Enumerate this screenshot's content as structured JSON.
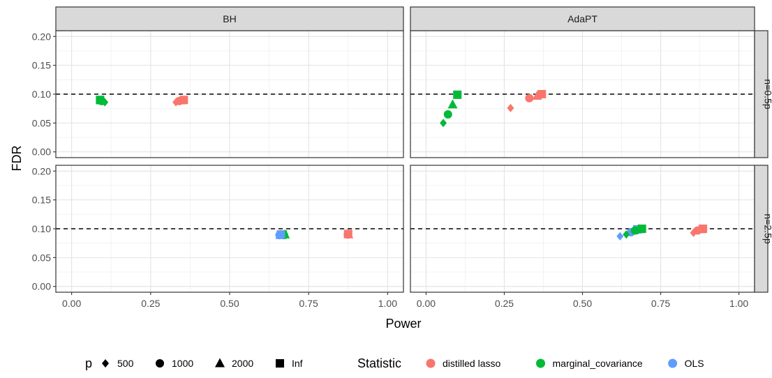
{
  "chart_data": {
    "type": "scatter",
    "xlabel": "Power",
    "ylabel": "FDR",
    "xlim": [
      -0.05,
      1.05
    ],
    "ylim": [
      -0.01,
      0.21
    ],
    "x_ticks": [
      0,
      0.25,
      0.5,
      0.75,
      1
    ],
    "x_tick_labels": [
      "0.00",
      "0.25",
      "0.50",
      "0.75",
      "1.00"
    ],
    "y_ticks": [
      0,
      0.05,
      0.1,
      0.15,
      0.2
    ],
    "y_tick_labels": [
      "0.00",
      "0.05",
      "0.10",
      "0.15",
      "0.20"
    ],
    "reference_line": {
      "y": 0.1,
      "style": "dashed",
      "color": "#000000"
    },
    "grid": true,
    "legend_position": "bottom",
    "facet_columns": [
      "BH",
      "AdaPT"
    ],
    "facet_rows": [
      "n=0.5p",
      "n=2.5p"
    ],
    "legend_p": {
      "title": "p",
      "entries": [
        {
          "label": "500",
          "shape": "diamond"
        },
        {
          "label": "1000",
          "shape": "circle"
        },
        {
          "label": "2000",
          "shape": "triangle"
        },
        {
          "label": "Inf",
          "shape": "square"
        }
      ]
    },
    "legend_statistic": {
      "title": "Statistic",
      "entries": [
        {
          "label": "distilled lasso",
          "color": "#F8766D"
        },
        {
          "label": "marginal_covariance",
          "color": "#00BA38"
        },
        {
          "label": "OLS",
          "color": "#619CFF"
        }
      ]
    },
    "panels": [
      {
        "col": 0,
        "row": 0,
        "points": [
          {
            "stat": "marginal_covariance",
            "p": "500",
            "x": 0.105,
            "y": 0.086
          },
          {
            "stat": "marginal_covariance",
            "p": "1000",
            "x": 0.095,
            "y": 0.088
          },
          {
            "stat": "marginal_covariance",
            "p": "2000",
            "x": 0.095,
            "y": 0.089
          },
          {
            "stat": "marginal_covariance",
            "p": "Inf",
            "x": 0.09,
            "y": 0.09
          },
          {
            "stat": "distilled lasso",
            "p": "500",
            "x": 0.33,
            "y": 0.086
          },
          {
            "stat": "distilled lasso",
            "p": "1000",
            "x": 0.34,
            "y": 0.088
          },
          {
            "stat": "distilled lasso",
            "p": "2000",
            "x": 0.345,
            "y": 0.089
          },
          {
            "stat": "distilled lasso",
            "p": "Inf",
            "x": 0.355,
            "y": 0.09
          }
        ]
      },
      {
        "col": 1,
        "row": 0,
        "points": [
          {
            "stat": "marginal_covariance",
            "p": "500",
            "x": 0.055,
            "y": 0.05
          },
          {
            "stat": "marginal_covariance",
            "p": "1000",
            "x": 0.07,
            "y": 0.065
          },
          {
            "stat": "marginal_covariance",
            "p": "2000",
            "x": 0.085,
            "y": 0.082
          },
          {
            "stat": "marginal_covariance",
            "p": "Inf",
            "x": 0.1,
            "y": 0.099
          },
          {
            "stat": "distilled lasso",
            "p": "500",
            "x": 0.27,
            "y": 0.076
          },
          {
            "stat": "distilled lasso",
            "p": "1000",
            "x": 0.33,
            "y": 0.093
          },
          {
            "stat": "distilled lasso",
            "p": "2000",
            "x": 0.355,
            "y": 0.097
          },
          {
            "stat": "distilled lasso",
            "p": "Inf",
            "x": 0.37,
            "y": 0.1
          }
        ]
      },
      {
        "col": 0,
        "row": 1,
        "points": [
          {
            "stat": "marginal_covariance",
            "p": "500",
            "x": 0.67,
            "y": 0.089
          },
          {
            "stat": "marginal_covariance",
            "p": "1000",
            "x": 0.672,
            "y": 0.089
          },
          {
            "stat": "marginal_covariance",
            "p": "2000",
            "x": 0.675,
            "y": 0.09
          },
          {
            "stat": "marginal_covariance",
            "p": "Inf",
            "x": 0.668,
            "y": 0.09
          },
          {
            "stat": "OLS",
            "p": "500",
            "x": 0.655,
            "y": 0.089
          },
          {
            "stat": "OLS",
            "p": "1000",
            "x": 0.658,
            "y": 0.089
          },
          {
            "stat": "OLS",
            "p": "2000",
            "x": 0.66,
            "y": 0.089
          },
          {
            "stat": "OLS",
            "p": "Inf",
            "x": 0.662,
            "y": 0.09
          },
          {
            "stat": "distilled lasso",
            "p": "500",
            "x": 0.872,
            "y": 0.09
          },
          {
            "stat": "distilled lasso",
            "p": "1000",
            "x": 0.874,
            "y": 0.09
          },
          {
            "stat": "distilled lasso",
            "p": "2000",
            "x": 0.876,
            "y": 0.09
          },
          {
            "stat": "distilled lasso",
            "p": "Inf",
            "x": 0.875,
            "y": 0.091
          }
        ]
      },
      {
        "col": 1,
        "row": 1,
        "points": [
          {
            "stat": "OLS",
            "p": "500",
            "x": 0.62,
            "y": 0.087
          },
          {
            "stat": "OLS",
            "p": "1000",
            "x": 0.655,
            "y": 0.094
          },
          {
            "stat": "OLS",
            "p": "2000",
            "x": 0.665,
            "y": 0.097
          },
          {
            "stat": "OLS",
            "p": "Inf",
            "x": 0.675,
            "y": 0.099
          },
          {
            "stat": "marginal_covariance",
            "p": "500",
            "x": 0.64,
            "y": 0.09
          },
          {
            "stat": "marginal_covariance",
            "p": "1000",
            "x": 0.668,
            "y": 0.097
          },
          {
            "stat": "marginal_covariance",
            "p": "2000",
            "x": 0.68,
            "y": 0.099
          },
          {
            "stat": "marginal_covariance",
            "p": "Inf",
            "x": 0.69,
            "y": 0.1
          },
          {
            "stat": "distilled lasso",
            "p": "500",
            "x": 0.855,
            "y": 0.093
          },
          {
            "stat": "distilled lasso",
            "p": "1000",
            "x": 0.868,
            "y": 0.097
          },
          {
            "stat": "distilled lasso",
            "p": "2000",
            "x": 0.878,
            "y": 0.099
          },
          {
            "stat": "distilled lasso",
            "p": "Inf",
            "x": 0.885,
            "y": 0.1
          }
        ]
      }
    ]
  }
}
